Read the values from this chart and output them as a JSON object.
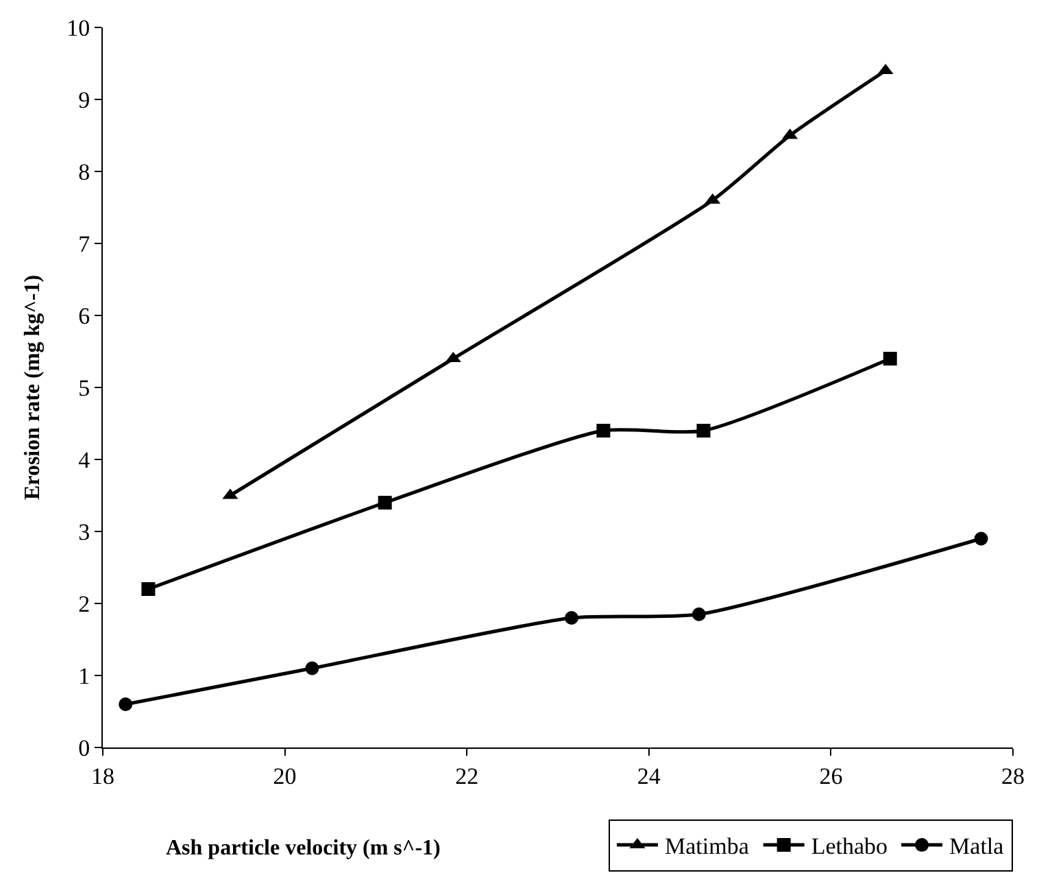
{
  "chart_data": {
    "type": "line",
    "xlabel": "Ash particle velocity (m s^-1)",
    "ylabel": "Erosion rate (mg kg^-1)",
    "xlim": [
      18,
      28
    ],
    "xticks": [
      18,
      20,
      22,
      24,
      26,
      28
    ],
    "ylim": [
      0,
      10
    ],
    "yticks": [
      0,
      1,
      2,
      3,
      4,
      5,
      6,
      7,
      8,
      9,
      10
    ],
    "legend": "bottom right",
    "line_style": "solid",
    "series": [
      {
        "name": "Matimba",
        "color": "#000000",
        "marker": "triangle",
        "x": [
          19.4,
          21.85,
          24.7,
          25.55,
          26.6
        ],
        "values": [
          3.5,
          5.4,
          7.6,
          8.5,
          9.4
        ]
      },
      {
        "name": "Lethabo",
        "color": "#000000",
        "marker": "square",
        "x": [
          18.5,
          21.1,
          23.5,
          24.6,
          26.65
        ],
        "values": [
          2.2,
          3.4,
          4.4,
          4.4,
          5.4
        ]
      },
      {
        "name": "Matla",
        "color": "#000000",
        "marker": "circle",
        "x": [
          18.25,
          20.3,
          23.15,
          24.55,
          27.65
        ],
        "values": [
          0.6,
          1.1,
          1.8,
          1.85,
          2.9
        ]
      }
    ]
  }
}
